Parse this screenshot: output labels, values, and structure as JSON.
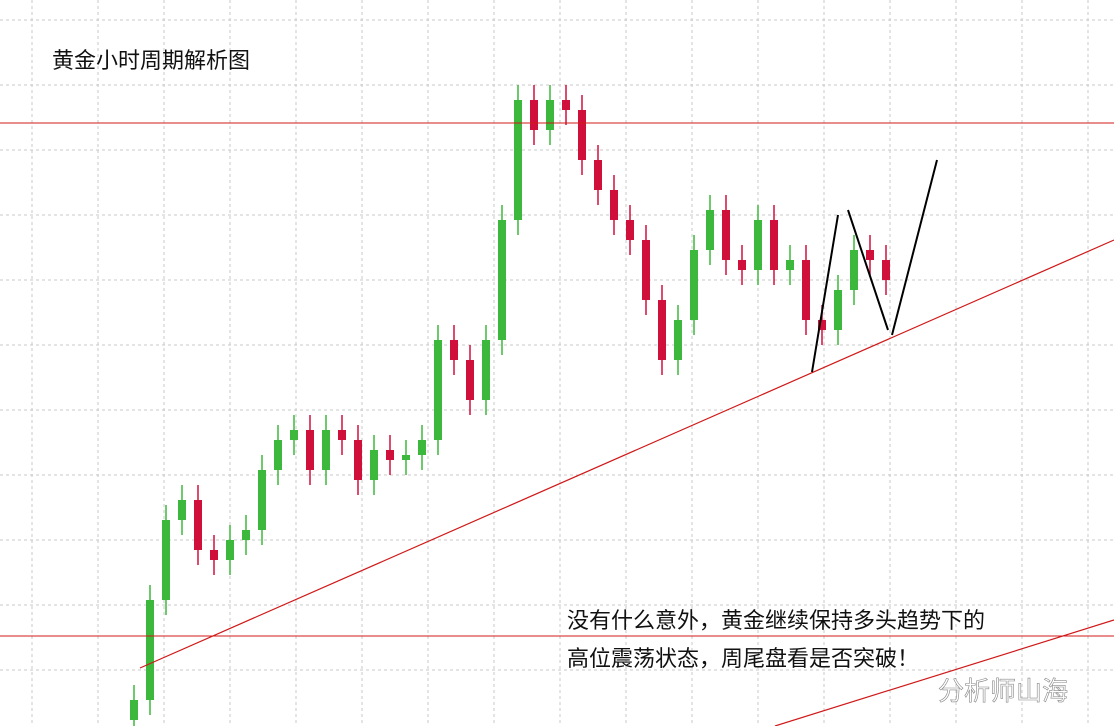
{
  "chart_data": {
    "type": "candlestick",
    "title": "黄金小时周期解析图",
    "annotation": [
      "没有什么意外，黄金继续保持多头趋势下的",
      "高位震荡状态，周尾盘看是否突破！"
    ],
    "watermark": "分析师山海",
    "up_color": "#3cb83c",
    "down_color": "#d0103a",
    "ylim": [
      0,
      726
    ],
    "open": [
      6,
      26,
      126,
      206,
      226,
      176,
      166,
      186,
      196,
      256,
      286,
      296,
      256,
      296,
      286,
      246,
      276,
      266,
      271,
      286,
      386,
      366,
      326,
      386,
      506,
      626,
      596,
      626,
      616,
      566,
      536,
      506,
      486,
      426,
      366,
      406,
      476,
      516,
      466,
      456,
      506,
      456,
      466,
      406,
      396,
      436,
      476,
      466
    ],
    "close": [
      26,
      126,
      206,
      226,
      176,
      166,
      186,
      196,
      256,
      286,
      296,
      256,
      296,
      286,
      246,
      276,
      266,
      271,
      286,
      386,
      366,
      326,
      386,
      506,
      626,
      596,
      626,
      616,
      566,
      536,
      506,
      486,
      426,
      366,
      406,
      476,
      516,
      466,
      456,
      506,
      456,
      466,
      406,
      396,
      436,
      476,
      466,
      446
    ],
    "high": [
      41,
      141,
      221,
      241,
      241,
      191,
      201,
      211,
      271,
      301,
      311,
      311,
      311,
      311,
      301,
      291,
      291,
      286,
      301,
      401,
      401,
      381,
      401,
      521,
      641,
      641,
      641,
      641,
      631,
      581,
      551,
      521,
      501,
      441,
      421,
      491,
      531,
      531,
      481,
      521,
      521,
      481,
      481,
      421,
      451,
      491,
      491,
      481
    ],
    "low": [
      0,
      11,
      111,
      191,
      161,
      151,
      151,
      171,
      181,
      241,
      271,
      241,
      241,
      271,
      231,
      231,
      251,
      251,
      256,
      271,
      351,
      311,
      311,
      371,
      491,
      581,
      581,
      601,
      551,
      521,
      491,
      471,
      411,
      351,
      351,
      391,
      461,
      451,
      441,
      441,
      441,
      441,
      391,
      381,
      381,
      421,
      451,
      431
    ]
  }
}
